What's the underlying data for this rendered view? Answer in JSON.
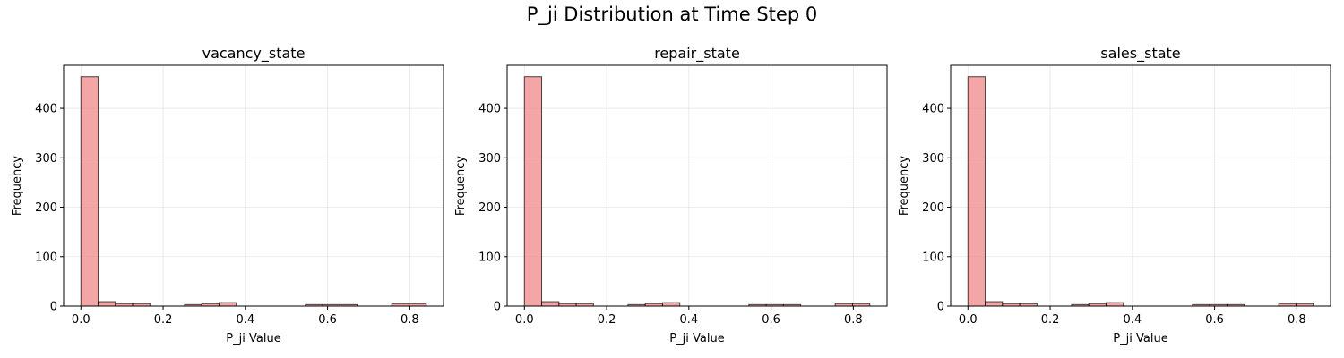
{
  "figure": {
    "suptitle": "P_ji Distribution at Time Step 0"
  },
  "colors": {
    "bar_fill": "#f08080",
    "bar_edge": "#000000",
    "grid": "#b0b0b0"
  },
  "chart_data": [
    {
      "type": "bar",
      "title": "vacancy_state",
      "xlabel": "P_ji Value",
      "ylabel": "Frequency",
      "xlim": [
        -0.042,
        0.882
      ],
      "ylim": [
        0,
        487
      ],
      "xticks": [
        0.0,
        0.2,
        0.4,
        0.6,
        0.8
      ],
      "xtick_labels": [
        "0.0",
        "0.2",
        "0.4",
        "0.6",
        "0.8"
      ],
      "yticks": [
        0,
        100,
        200,
        300,
        400
      ],
      "ytick_labels": [
        "0",
        "100",
        "200",
        "300",
        "400"
      ],
      "grid": true,
      "bins": {
        "start": 0.0,
        "width": 0.042,
        "counts": [
          464,
          9,
          5,
          5,
          0,
          0,
          3,
          5,
          7,
          0,
          0,
          0,
          0,
          3,
          3,
          3,
          0,
          0,
          5,
          5
        ]
      }
    },
    {
      "type": "bar",
      "title": "repair_state",
      "xlabel": "P_ji Value",
      "ylabel": "Frequency",
      "xlim": [
        -0.042,
        0.882
      ],
      "ylim": [
        0,
        487
      ],
      "xticks": [
        0.0,
        0.2,
        0.4,
        0.6,
        0.8
      ],
      "xtick_labels": [
        "0.0",
        "0.2",
        "0.4",
        "0.6",
        "0.8"
      ],
      "yticks": [
        0,
        100,
        200,
        300,
        400
      ],
      "ytick_labels": [
        "0",
        "100",
        "200",
        "300",
        "400"
      ],
      "grid": true,
      "bins": {
        "start": 0.0,
        "width": 0.042,
        "counts": [
          464,
          9,
          5,
          5,
          0,
          0,
          3,
          5,
          7,
          0,
          0,
          0,
          0,
          3,
          3,
          3,
          0,
          0,
          5,
          5
        ]
      }
    },
    {
      "type": "bar",
      "title": "sales_state",
      "xlabel": "P_ji Value",
      "ylabel": "Frequency",
      "xlim": [
        -0.042,
        0.882
      ],
      "ylim": [
        0,
        487
      ],
      "xticks": [
        0.0,
        0.2,
        0.4,
        0.6,
        0.8
      ],
      "xtick_labels": [
        "0.0",
        "0.2",
        "0.4",
        "0.6",
        "0.8"
      ],
      "yticks": [
        0,
        100,
        200,
        300,
        400
      ],
      "ytick_labels": [
        "0",
        "100",
        "200",
        "300",
        "400"
      ],
      "grid": true,
      "bins": {
        "start": 0.0,
        "width": 0.042,
        "counts": [
          464,
          9,
          5,
          5,
          0,
          0,
          3,
          5,
          7,
          0,
          0,
          0,
          0,
          3,
          3,
          3,
          0,
          0,
          5,
          5
        ]
      }
    }
  ]
}
